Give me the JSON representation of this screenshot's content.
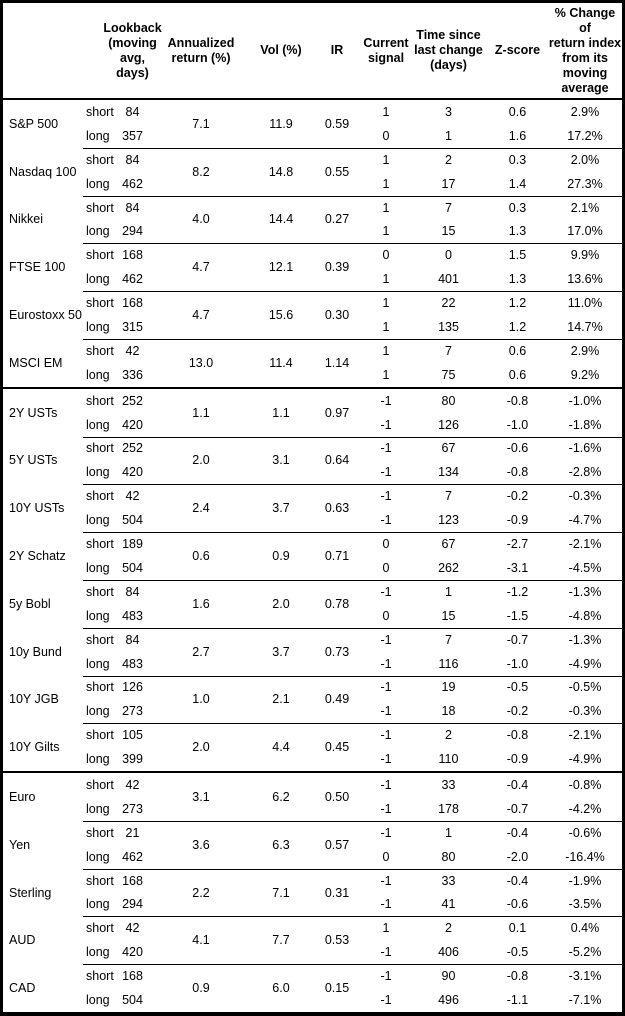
{
  "header": {
    "lookback": "Lookback\n(moving\navg, days)",
    "annualized": "Annualized\nreturn (%)",
    "vol": "Vol (%)",
    "ir": "IR",
    "signal": "Current\nsignal",
    "time": "Time since\nlast change\n(days)",
    "zscore": "Z-score",
    "pct": "% Change of\nreturn index\nfrom its\nmoving\naverage"
  },
  "sections": [
    {
      "id": "equities",
      "groups": [
        {
          "asset": "S&P 500",
          "annualized_return_pct": "7.1",
          "vol_pct": "11.9",
          "ir": "0.59",
          "rows": [
            {
              "horizon": "short",
              "lookback_days": "84",
              "current_signal": "1",
              "time_since_last_change_days": "3",
              "z_score": "0.6",
              "pct_change_from_ma": "2.9%"
            },
            {
              "horizon": "long",
              "lookback_days": "357",
              "current_signal": "0",
              "time_since_last_change_days": "1",
              "z_score": "1.6",
              "pct_change_from_ma": "17.2%"
            }
          ]
        },
        {
          "asset": "Nasdaq 100",
          "annualized_return_pct": "8.2",
          "vol_pct": "14.8",
          "ir": "0.55",
          "rows": [
            {
              "horizon": "short",
              "lookback_days": "84",
              "current_signal": "1",
              "time_since_last_change_days": "2",
              "z_score": "0.3",
              "pct_change_from_ma": "2.0%"
            },
            {
              "horizon": "long",
              "lookback_days": "462",
              "current_signal": "1",
              "time_since_last_change_days": "17",
              "z_score": "1.4",
              "pct_change_from_ma": "27.3%"
            }
          ]
        },
        {
          "asset": "Nikkei",
          "annualized_return_pct": "4.0",
          "vol_pct": "14.4",
          "ir": "0.27",
          "rows": [
            {
              "horizon": "short",
              "lookback_days": "84",
              "current_signal": "1",
              "time_since_last_change_days": "7",
              "z_score": "0.3",
              "pct_change_from_ma": "2.1%"
            },
            {
              "horizon": "long",
              "lookback_days": "294",
              "current_signal": "1",
              "time_since_last_change_days": "15",
              "z_score": "1.3",
              "pct_change_from_ma": "17.0%"
            }
          ]
        },
        {
          "asset": "FTSE 100",
          "annualized_return_pct": "4.7",
          "vol_pct": "12.1",
          "ir": "0.39",
          "rows": [
            {
              "horizon": "short",
              "lookback_days": "168",
              "current_signal": "0",
              "time_since_last_change_days": "0",
              "z_score": "1.5",
              "pct_change_from_ma": "9.9%"
            },
            {
              "horizon": "long",
              "lookback_days": "462",
              "current_signal": "1",
              "time_since_last_change_days": "401",
              "z_score": "1.3",
              "pct_change_from_ma": "13.6%"
            }
          ]
        },
        {
          "asset": "Eurostoxx 50",
          "annualized_return_pct": "4.7",
          "vol_pct": "15.6",
          "ir": "0.30",
          "rows": [
            {
              "horizon": "short",
              "lookback_days": "168",
              "current_signal": "1",
              "time_since_last_change_days": "22",
              "z_score": "1.2",
              "pct_change_from_ma": "11.0%"
            },
            {
              "horizon": "long",
              "lookback_days": "315",
              "current_signal": "1",
              "time_since_last_change_days": "135",
              "z_score": "1.2",
              "pct_change_from_ma": "14.7%"
            }
          ]
        },
        {
          "asset": "MSCI EM",
          "annualized_return_pct": "13.0",
          "vol_pct": "11.4",
          "ir": "1.14",
          "rows": [
            {
              "horizon": "short",
              "lookback_days": "42",
              "current_signal": "1",
              "time_since_last_change_days": "7",
              "z_score": "0.6",
              "pct_change_from_ma": "2.9%"
            },
            {
              "horizon": "long",
              "lookback_days": "336",
              "current_signal": "1",
              "time_since_last_change_days": "75",
              "z_score": "0.6",
              "pct_change_from_ma": "9.2%"
            }
          ]
        }
      ]
    },
    {
      "id": "bonds",
      "groups": [
        {
          "asset": "2Y USTs",
          "annualized_return_pct": "1.1",
          "vol_pct": "1.1",
          "ir": "0.97",
          "rows": [
            {
              "horizon": "short",
              "lookback_days": "252",
              "current_signal": "-1",
              "time_since_last_change_days": "80",
              "z_score": "-0.8",
              "pct_change_from_ma": "-1.0%"
            },
            {
              "horizon": "long",
              "lookback_days": "420",
              "current_signal": "-1",
              "time_since_last_change_days": "126",
              "z_score": "-1.0",
              "pct_change_from_ma": "-1.8%"
            }
          ]
        },
        {
          "asset": "5Y USTs",
          "annualized_return_pct": "2.0",
          "vol_pct": "3.1",
          "ir": "0.64",
          "rows": [
            {
              "horizon": "short",
              "lookback_days": "252",
              "current_signal": "-1",
              "time_since_last_change_days": "67",
              "z_score": "-0.6",
              "pct_change_from_ma": "-1.6%"
            },
            {
              "horizon": "long",
              "lookback_days": "420",
              "current_signal": "-1",
              "time_since_last_change_days": "134",
              "z_score": "-0.8",
              "pct_change_from_ma": "-2.8%"
            }
          ]
        },
        {
          "asset": "10Y USTs",
          "annualized_return_pct": "2.4",
          "vol_pct": "3.7",
          "ir": "0.63",
          "rows": [
            {
              "horizon": "short",
              "lookback_days": "42",
              "current_signal": "-1",
              "time_since_last_change_days": "7",
              "z_score": "-0.2",
              "pct_change_from_ma": "-0.3%"
            },
            {
              "horizon": "long",
              "lookback_days": "504",
              "current_signal": "-1",
              "time_since_last_change_days": "123",
              "z_score": "-0.9",
              "pct_change_from_ma": "-4.7%"
            }
          ]
        },
        {
          "asset": "2Y Schatz",
          "annualized_return_pct": "0.6",
          "vol_pct": "0.9",
          "ir": "0.71",
          "rows": [
            {
              "horizon": "short",
              "lookback_days": "189",
              "current_signal": "0",
              "time_since_last_change_days": "67",
              "z_score": "-2.7",
              "pct_change_from_ma": "-2.1%"
            },
            {
              "horizon": "long",
              "lookback_days": "504",
              "current_signal": "0",
              "time_since_last_change_days": "262",
              "z_score": "-3.1",
              "pct_change_from_ma": "-4.5%"
            }
          ]
        },
        {
          "asset": "5y Bobl",
          "annualized_return_pct": "1.6",
          "vol_pct": "2.0",
          "ir": "0.78",
          "rows": [
            {
              "horizon": "short",
              "lookback_days": "84",
              "current_signal": "-1",
              "time_since_last_change_days": "1",
              "z_score": "-1.2",
              "pct_change_from_ma": "-1.3%"
            },
            {
              "horizon": "long",
              "lookback_days": "483",
              "current_signal": "0",
              "time_since_last_change_days": "15",
              "z_score": "-1.5",
              "pct_change_from_ma": "-4.8%"
            }
          ]
        },
        {
          "asset": "10y Bund",
          "annualized_return_pct": "2.7",
          "vol_pct": "3.7",
          "ir": "0.73",
          "rows": [
            {
              "horizon": "short",
              "lookback_days": "84",
              "current_signal": "-1",
              "time_since_last_change_days": "7",
              "z_score": "-0.7",
              "pct_change_from_ma": "-1.3%"
            },
            {
              "horizon": "long",
              "lookback_days": "483",
              "current_signal": "-1",
              "time_since_last_change_days": "116",
              "z_score": "-1.0",
              "pct_change_from_ma": "-4.9%"
            }
          ]
        },
        {
          "asset": "10Y JGB",
          "annualized_return_pct": "1.0",
          "vol_pct": "2.1",
          "ir": "0.49",
          "rows": [
            {
              "horizon": "short",
              "lookback_days": "126",
              "current_signal": "-1",
              "time_since_last_change_days": "19",
              "z_score": "-0.5",
              "pct_change_from_ma": "-0.5%"
            },
            {
              "horizon": "long",
              "lookback_days": "273",
              "current_signal": "-1",
              "time_since_last_change_days": "18",
              "z_score": "-0.2",
              "pct_change_from_ma": "-0.3%"
            }
          ]
        },
        {
          "asset": "10Y Gilts",
          "annualized_return_pct": "2.0",
          "vol_pct": "4.4",
          "ir": "0.45",
          "rows": [
            {
              "horizon": "short",
              "lookback_days": "105",
              "current_signal": "-1",
              "time_since_last_change_days": "2",
              "z_score": "-0.8",
              "pct_change_from_ma": "-2.1%"
            },
            {
              "horizon": "long",
              "lookback_days": "399",
              "current_signal": "-1",
              "time_since_last_change_days": "110",
              "z_score": "-0.9",
              "pct_change_from_ma": "-4.9%"
            }
          ]
        }
      ]
    },
    {
      "id": "fx",
      "groups": [
        {
          "asset": "Euro",
          "annualized_return_pct": "3.1",
          "vol_pct": "6.2",
          "ir": "0.50",
          "rows": [
            {
              "horizon": "short",
              "lookback_days": "42",
              "current_signal": "-1",
              "time_since_last_change_days": "33",
              "z_score": "-0.4",
              "pct_change_from_ma": "-0.8%"
            },
            {
              "horizon": "long",
              "lookback_days": "273",
              "current_signal": "-1",
              "time_since_last_change_days": "178",
              "z_score": "-0.7",
              "pct_change_from_ma": "-4.2%"
            }
          ]
        },
        {
          "asset": "Yen",
          "annualized_return_pct": "3.6",
          "vol_pct": "6.3",
          "ir": "0.57",
          "rows": [
            {
              "horizon": "short",
              "lookback_days": "21",
              "current_signal": "-1",
              "time_since_last_change_days": "1",
              "z_score": "-0.4",
              "pct_change_from_ma": "-0.6%"
            },
            {
              "horizon": "long",
              "lookback_days": "462",
              "current_signal": "0",
              "time_since_last_change_days": "80",
              "z_score": "-2.0",
              "pct_change_from_ma": "-16.4%"
            }
          ]
        },
        {
          "asset": "Sterling",
          "annualized_return_pct": "2.2",
          "vol_pct": "7.1",
          "ir": "0.31",
          "rows": [
            {
              "horizon": "short",
              "lookback_days": "168",
              "current_signal": "-1",
              "time_since_last_change_days": "33",
              "z_score": "-0.4",
              "pct_change_from_ma": "-1.9%"
            },
            {
              "horizon": "long",
              "lookback_days": "294",
              "current_signal": "-1",
              "time_since_last_change_days": "41",
              "z_score": "-0.6",
              "pct_change_from_ma": "-3.5%"
            }
          ]
        },
        {
          "asset": "AUD",
          "annualized_return_pct": "4.1",
          "vol_pct": "7.7",
          "ir": "0.53",
          "rows": [
            {
              "horizon": "short",
              "lookback_days": "42",
              "current_signal": "1",
              "time_since_last_change_days": "2",
              "z_score": "0.1",
              "pct_change_from_ma": "0.4%"
            },
            {
              "horizon": "long",
              "lookback_days": "420",
              "current_signal": "-1",
              "time_since_last_change_days": "406",
              "z_score": "-0.5",
              "pct_change_from_ma": "-5.2%"
            }
          ]
        },
        {
          "asset": "CAD",
          "annualized_return_pct": "0.9",
          "vol_pct": "6.0",
          "ir": "0.15",
          "rows": [
            {
              "horizon": "short",
              "lookback_days": "168",
              "current_signal": "-1",
              "time_since_last_change_days": "90",
              "z_score": "-0.8",
              "pct_change_from_ma": "-3.1%"
            },
            {
              "horizon": "long",
              "lookback_days": "504",
              "current_signal": "-1",
              "time_since_last_change_days": "496",
              "z_score": "-1.1",
              "pct_change_from_ma": "-7.1%"
            }
          ]
        }
      ]
    }
  ]
}
